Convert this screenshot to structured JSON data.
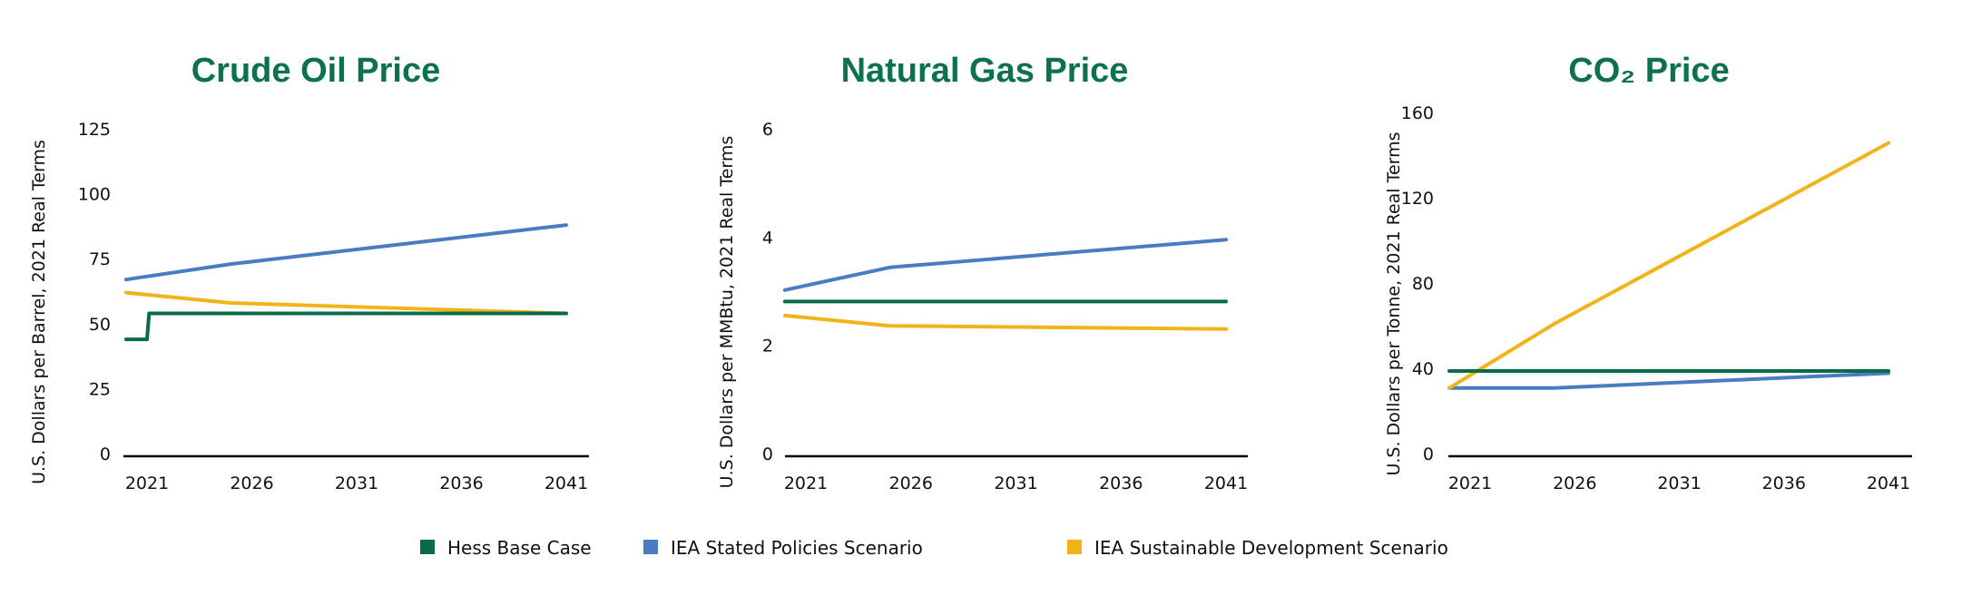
{
  "chart_data": [
    {
      "type": "line",
      "title": "Crude Oil Price",
      "ylabel": "U.S. Dollars per Barrel, 2021 Real Terms",
      "xlabel": "",
      "ylim": [
        0,
        125
      ],
      "yticks": [
        "0",
        "25",
        "50",
        "75",
        "100",
        "125"
      ],
      "ytick_values": [
        0,
        25,
        50,
        75,
        100,
        125
      ],
      "xticks": [
        "2021",
        "2026",
        "2031",
        "2036",
        "2041"
      ],
      "xtick_values": [
        2021,
        2026,
        2031,
        2036,
        2041
      ],
      "series": [
        {
          "name": "Hess Base Case",
          "points": [
            [
              2020,
              45
            ],
            [
              2021,
              45
            ],
            [
              2021.1,
              55
            ],
            [
              2041,
              55
            ]
          ]
        },
        {
          "name": "IEA Stated Policies Scenario",
          "points": [
            [
              2020,
              68
            ],
            [
              2025,
              74
            ],
            [
              2041,
              89
            ]
          ]
        },
        {
          "name": "IEA Sustainable Development Scenario",
          "points": [
            [
              2020,
              63
            ],
            [
              2025,
              59
            ],
            [
              2041,
              55
            ]
          ]
        }
      ]
    },
    {
      "type": "line",
      "title": "Natural Gas Price",
      "ylabel": "U.S. Dollars per MMBtu, 2021 Real Terms",
      "xlabel": "",
      "ylim": [
        0,
        6
      ],
      "yticks": [
        "0",
        "2",
        "4",
        "6"
      ],
      "ytick_values": [
        0,
        2,
        4,
        6
      ],
      "xticks": [
        "2021",
        "2026",
        "2031",
        "2036",
        "2041"
      ],
      "xtick_values": [
        2021,
        2026,
        2031,
        2036,
        2041
      ],
      "series": [
        {
          "name": "Hess Base Case",
          "points": [
            [
              2020,
              2.86
            ],
            [
              2041,
              2.86
            ]
          ]
        },
        {
          "name": "IEA Stated Policies Scenario",
          "points": [
            [
              2020,
              3.07
            ],
            [
              2025,
              3.49
            ],
            [
              2041,
              4.0
            ]
          ]
        },
        {
          "name": "IEA Sustainable Development Scenario",
          "points": [
            [
              2020,
              2.6
            ],
            [
              2025,
              2.41
            ],
            [
              2041,
              2.35
            ]
          ]
        }
      ]
    },
    {
      "type": "line",
      "title": "CO₂ Price",
      "ylabel": "U.S. Dollars per Tonne, 2021 Real Terms",
      "xlabel": "",
      "ylim": [
        0,
        160
      ],
      "yticks": [
        "0",
        "40",
        "80",
        "120",
        "160"
      ],
      "ytick_values": [
        0,
        40,
        80,
        120,
        160
      ],
      "xticks": [
        "2021",
        "2026",
        "2031",
        "2036",
        "2041"
      ],
      "xtick_values": [
        2021,
        2026,
        2031,
        2036,
        2041
      ],
      "series": [
        {
          "name": "Hess Base Case",
          "points": [
            [
              2020,
              40
            ],
            [
              2041,
              40
            ]
          ]
        },
        {
          "name": "IEA Stated Policies Scenario",
          "points": [
            [
              2020,
              32
            ],
            [
              2025,
              32
            ],
            [
              2041,
              39
            ]
          ]
        },
        {
          "name": "IEA Sustainable Development Scenario",
          "points": [
            [
              2020,
              32
            ],
            [
              2025,
              62
            ],
            [
              2041,
              147
            ]
          ]
        }
      ]
    }
  ],
  "legend": {
    "position": "bottom-center",
    "items": [
      {
        "label": "Hess Base Case",
        "color": "#0a6b48"
      },
      {
        "label": "IEA Stated Policies Scenario",
        "color": "#4a7cc4"
      },
      {
        "label": "IEA Sustainable Development Scenario",
        "color": "#f0b418"
      }
    ]
  }
}
